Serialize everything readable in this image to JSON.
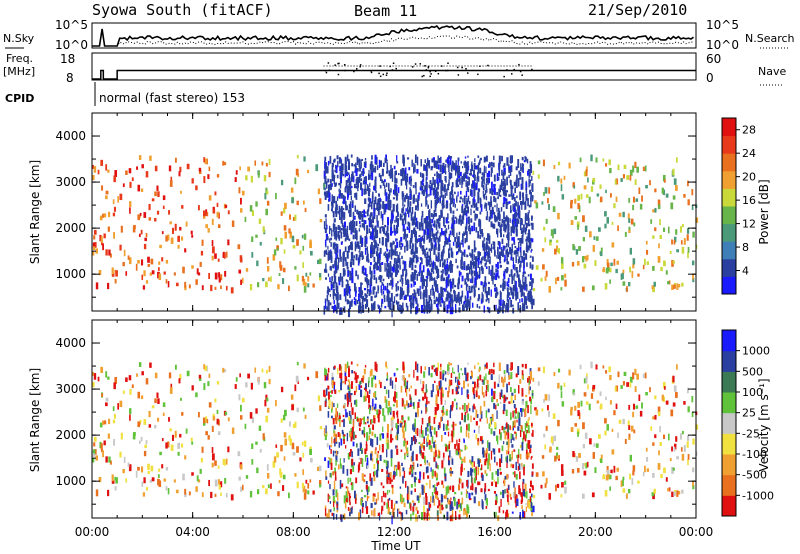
{
  "header": {
    "station": "Syowa South (fitACF)",
    "beam": "Beam 11",
    "date": "21/Sep/2010"
  },
  "top_panels": {
    "nsky_label": "N.Sky",
    "nsky_ticks": [
      "10^5",
      "10^0"
    ],
    "nsearch_label": "N.Search",
    "nsearch_ticks": [
      "10^5",
      "10^0"
    ],
    "freq_label": "Freq.",
    "freq_unit": "[MHz]",
    "freq_ticks": [
      "18",
      "8"
    ],
    "nave_label": "Nave",
    "nave_ticks": [
      "60",
      "0"
    ],
    "cpid_label": "CPID",
    "cpid_text": "normal (fast stereo) 153"
  },
  "colors": {
    "scan_blue": "#2a3fa0",
    "power_scale": [
      "#1a1aff",
      "#2a3fa0",
      "#3f7fb8",
      "#4a9a7a",
      "#66b44a",
      "#c9d93a",
      "#f0a030",
      "#e8701e",
      "#e83a1a",
      "#e01010"
    ],
    "velocity_scale": [
      "#1a1aff",
      "#2a3fa0",
      "#3c7a55",
      "#5fc23a",
      "#c8c8c8",
      "#f0e040",
      "#f0a030",
      "#e8701e",
      "#e01010"
    ]
  },
  "chart_data": [
    {
      "type": "heatmap",
      "title": "",
      "xlabel": "",
      "ylabel": "Slant Range [km]",
      "x_ticks": [
        "00:00",
        "04:00",
        "08:00",
        "12:00",
        "16:00",
        "20:00",
        "00:00"
      ],
      "y_ticks": [
        "1000",
        "2000",
        "3000",
        "4000"
      ],
      "ylim": [
        200,
        4500
      ],
      "xlim_hours": [
        0,
        24
      ],
      "colorbar_label": "Power [dB]",
      "colorbar_ticks": [
        "4",
        "8",
        "12",
        "16",
        "20",
        "24",
        "28"
      ],
      "vlim": [
        0,
        30
      ],
      "dense_region_hours": [
        9.2,
        17.5
      ],
      "dense_region_range_km": [
        250,
        3600
      ]
    },
    {
      "type": "heatmap",
      "title": "",
      "xlabel": "Time UT",
      "ylabel": "Slant Range [km]",
      "x_ticks": [
        "00:00",
        "04:00",
        "08:00",
        "12:00",
        "16:00",
        "20:00",
        "00:00"
      ],
      "y_ticks": [
        "1000",
        "2000",
        "3000",
        "4000"
      ],
      "ylim": [
        200,
        4500
      ],
      "xlim_hours": [
        0,
        24
      ],
      "colorbar_label": "Velocity [m s⁻¹]",
      "colorbar_ticks": [
        "1000",
        "500",
        "100",
        "25",
        "-25",
        "-100",
        "-500",
        "-1000"
      ]
    }
  ]
}
